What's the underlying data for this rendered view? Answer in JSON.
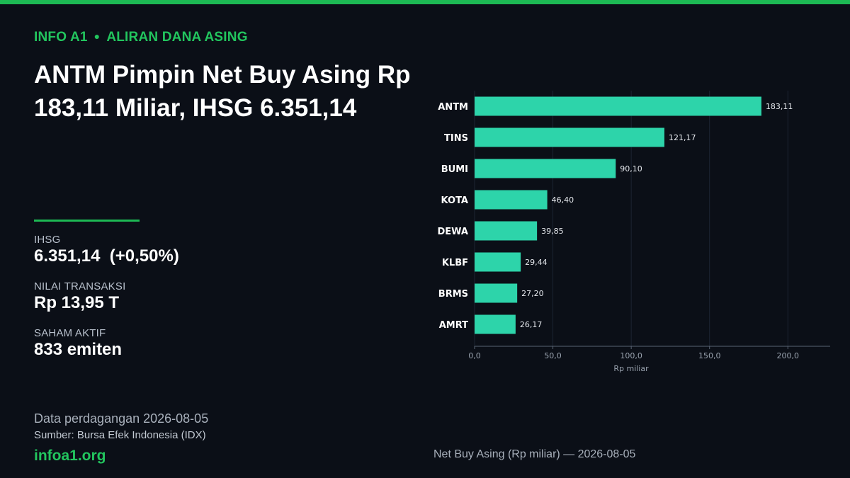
{
  "header": {
    "kicker_left": "INFO A1",
    "kicker_right": "ALIRAN DANA ASING",
    "headline": "ANTM Pimpin Net Buy Asing Rp 183,11 Miliar, IHSG 6.351,14"
  },
  "stats": [
    {
      "label": "IHSG",
      "value": "6.351,14  (+0,50%)"
    },
    {
      "label": "NILAI TRANSAKSI",
      "value": "Rp 13,95 T"
    },
    {
      "label": "SAHAM AKTIF",
      "value": "833 emiten"
    }
  ],
  "footer": {
    "date_line": "Data perdagangan 2026-08-05",
    "source_line": "Sumber: Bursa Efek Indonesia (IDX)",
    "site": "infoa1.org"
  },
  "colors": {
    "accent": "#1db954",
    "bar": "#2dd4aa",
    "background": "#0b0f17"
  },
  "chart_data": {
    "type": "bar",
    "orientation": "horizontal",
    "categories": [
      "ANTM",
      "TINS",
      "BUMI",
      "KOTA",
      "DEWA",
      "KLBF",
      "BRMS",
      "AMRT"
    ],
    "values": [
      183.11,
      121.17,
      90.1,
      46.4,
      39.85,
      29.44,
      27.2,
      26.17
    ],
    "value_labels": [
      "183,11",
      "121,17",
      "90,10",
      "46,40",
      "39,85",
      "29,44",
      "27,20",
      "26,17"
    ],
    "xticks": [
      0,
      50,
      100,
      150,
      200
    ],
    "xtick_labels": [
      "0,0",
      "50,0",
      "100,0",
      "150,0",
      "200,0"
    ],
    "xlim": [
      0,
      227
    ],
    "xlabel": "Rp miliar",
    "caption": "Net Buy Asing (Rp miliar) — 2026-08-05",
    "grid": true
  }
}
